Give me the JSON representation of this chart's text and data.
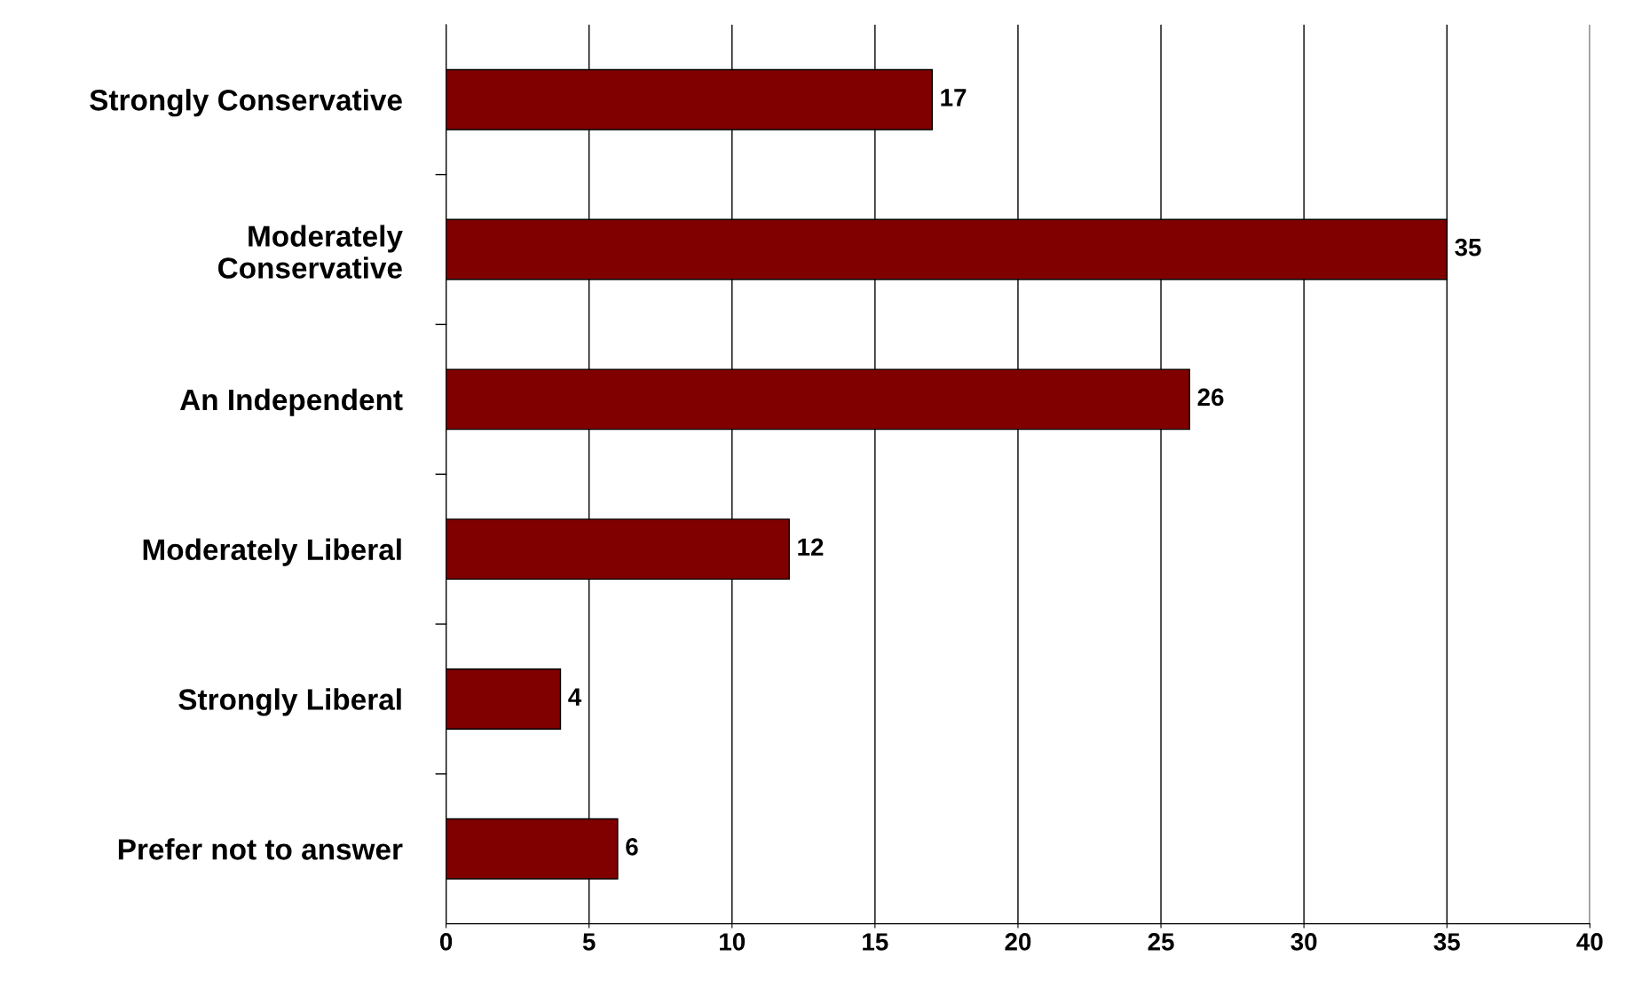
{
  "chart_data": {
    "type": "bar",
    "orientation": "horizontal",
    "categories": [
      "Strongly Conservative",
      "Moderately\nConservative",
      "An Independent",
      "Moderately Liberal",
      "Strongly Liberal",
      "Prefer not to answer"
    ],
    "values": [
      17,
      35,
      26,
      12,
      4,
      6
    ],
    "color": "#800000",
    "xlim": [
      0,
      40
    ],
    "xticks": [
      0,
      5,
      10,
      15,
      20,
      25,
      30,
      35,
      40
    ],
    "grid": "x",
    "data_labels": true
  }
}
